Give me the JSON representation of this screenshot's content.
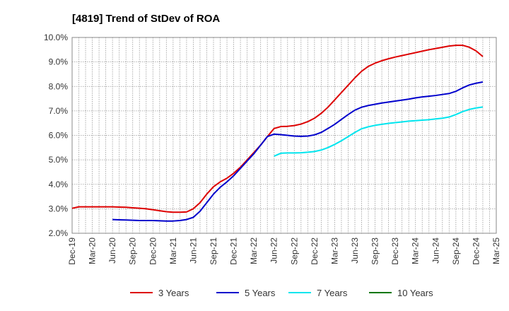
{
  "chart_data": {
    "type": "line",
    "title": "[4819]  Trend of StDev of ROA",
    "xlabel": "",
    "ylabel": "",
    "ylim": [
      2.0,
      10.0
    ],
    "y_ticks": [
      "2.0%",
      "3.0%",
      "4.0%",
      "5.0%",
      "6.0%",
      "7.0%",
      "8.0%",
      "9.0%",
      "10.0%"
    ],
    "x_ticks": [
      "Dec-19",
      "Mar-20",
      "Jun-20",
      "Sep-20",
      "Dec-20",
      "Mar-21",
      "Jun-21",
      "Sep-21",
      "Dec-21",
      "Mar-22",
      "Jun-22",
      "Sep-22",
      "Dec-22",
      "Mar-23",
      "Jun-23",
      "Sep-23",
      "Dec-23",
      "Mar-24",
      "Jun-24",
      "Sep-24",
      "Dec-24",
      "Mar-25"
    ],
    "grid": true,
    "legend_position": "bottom",
    "series": [
      {
        "name": "3 Years",
        "color": "#dd0000",
        "start_index": 0,
        "values": [
          3.02,
          3.08,
          3.08,
          3.08,
          3.08,
          3.08,
          3.08,
          3.07,
          3.06,
          3.04,
          3.02,
          3.0,
          2.96,
          2.92,
          2.88,
          2.86,
          2.86,
          2.87,
          3.0,
          3.25,
          3.6,
          3.9,
          4.1,
          4.25,
          4.45,
          4.7,
          5.0,
          5.3,
          5.6,
          5.95,
          6.28,
          6.36,
          6.37,
          6.4,
          6.46,
          6.56,
          6.7,
          6.9,
          7.15,
          7.45,
          7.75,
          8.05,
          8.35,
          8.62,
          8.82,
          8.95,
          9.05,
          9.13,
          9.2,
          9.26,
          9.32,
          9.38,
          9.44,
          9.5,
          9.55,
          9.6,
          9.65,
          9.68,
          9.68,
          9.6,
          9.45,
          9.22
        ]
      },
      {
        "name": "5 Years",
        "color": "#0000cc",
        "start_index": 6,
        "values": [
          2.56,
          2.55,
          2.54,
          2.53,
          2.52,
          2.52,
          2.52,
          2.51,
          2.5,
          2.5,
          2.52,
          2.56,
          2.65,
          2.9,
          3.25,
          3.6,
          3.88,
          4.1,
          4.35,
          4.65,
          4.95,
          5.25,
          5.6,
          5.95,
          6.05,
          6.03,
          6.0,
          5.97,
          5.96,
          5.97,
          6.02,
          6.12,
          6.28,
          6.45,
          6.65,
          6.85,
          7.03,
          7.15,
          7.22,
          7.27,
          7.32,
          7.36,
          7.4,
          7.44,
          7.48,
          7.53,
          7.57,
          7.6,
          7.63,
          7.67,
          7.71,
          7.8,
          7.94,
          8.06,
          8.13,
          8.18
        ]
      },
      {
        "name": "7 Years",
        "color": "#00e5ee",
        "start_index": 30,
        "values": [
          5.15,
          5.27,
          5.28,
          5.28,
          5.29,
          5.31,
          5.34,
          5.4,
          5.5,
          5.63,
          5.78,
          5.95,
          6.12,
          6.27,
          6.35,
          6.41,
          6.45,
          6.49,
          6.52,
          6.55,
          6.58,
          6.6,
          6.62,
          6.64,
          6.67,
          6.7,
          6.75,
          6.85,
          6.97,
          7.06,
          7.12,
          7.16
        ]
      },
      {
        "name": "10 Years",
        "color": "#007700",
        "start_index": 0,
        "values": []
      }
    ]
  }
}
